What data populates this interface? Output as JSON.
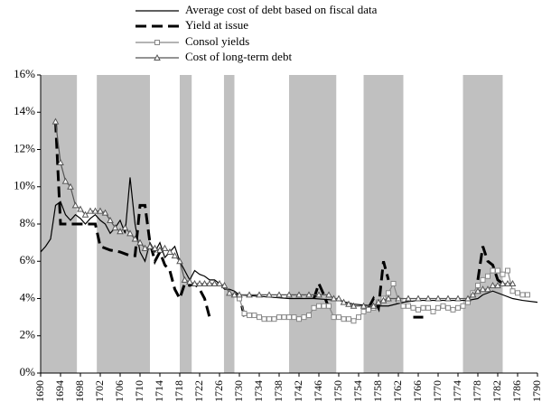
{
  "chart_data": {
    "type": "line",
    "xlim": [
      1690,
      1790
    ],
    "xticks": [
      1690,
      1694,
      1698,
      1702,
      1706,
      1710,
      1714,
      1718,
      1722,
      1726,
      1730,
      1734,
      1738,
      1742,
      1746,
      1750,
      1754,
      1758,
      1762,
      1766,
      1770,
      1774,
      1778,
      1782,
      1786,
      1790
    ],
    "ylim": [
      0,
      16
    ],
    "yticks": [
      {
        "value": 0,
        "label": "0%"
      },
      {
        "value": 2,
        "label": "2%"
      },
      {
        "value": 4,
        "label": "4%"
      },
      {
        "value": 6,
        "label": "6%"
      },
      {
        "value": 8,
        "label": "8%"
      },
      {
        "value": 10,
        "label": "10%"
      },
      {
        "value": 12,
        "label": "12%"
      },
      {
        "value": 14,
        "label": "14%"
      },
      {
        "value": 16,
        "label": "16%"
      }
    ],
    "shaded_periods": [
      [
        1690,
        1697.3
      ],
      [
        1701.3,
        1712
      ],
      [
        1718,
        1720.4
      ],
      [
        1726.9,
        1729
      ],
      [
        1740,
        1749.5
      ],
      [
        1755,
        1763
      ],
      [
        1775,
        1783
      ]
    ],
    "shade_color": "#c0c0c0",
    "series": [
      {
        "name": "Average cost of debt based on fiscal data",
        "color": "#000000",
        "style": "thin",
        "marker": "none",
        "x": [
          1690,
          1691,
          1692,
          1693,
          1694,
          1695,
          1696,
          1697,
          1698,
          1699,
          1700,
          1701,
          1702,
          1703,
          1704,
          1705,
          1706,
          1707,
          1708,
          1709,
          1710,
          1711,
          1712,
          1713,
          1714,
          1715,
          1716,
          1717,
          1718,
          1719,
          1720,
          1721,
          1722,
          1723,
          1724,
          1725,
          1726,
          1727,
          1728,
          1729,
          1730,
          1735,
          1740,
          1745,
          1750,
          1753,
          1757,
          1760,
          1763,
          1766,
          1770,
          1774,
          1776,
          1778,
          1779,
          1781,
          1783,
          1785,
          1787,
          1790
        ],
        "values": [
          6.5,
          6.8,
          7.2,
          9,
          9.2,
          8.5,
          8.2,
          8.5,
          8.3,
          8,
          8.3,
          8.5,
          8.2,
          8,
          7.5,
          7.8,
          8.2,
          7.5,
          10.5,
          8,
          6.5,
          6,
          7,
          6.5,
          7,
          6.2,
          6.5,
          6.8,
          6,
          5.5,
          5,
          5.5,
          5.3,
          5.2,
          5,
          5,
          4.8,
          4.5,
          4.5,
          4.4,
          4.2,
          4.1,
          4,
          4,
          3.9,
          3.7,
          3.6,
          3.6,
          3.8,
          3.9,
          3.9,
          3.9,
          3.9,
          4,
          4.2,
          4.4,
          4.2,
          4,
          3.9,
          3.8
        ]
      },
      {
        "name": "Yield at issue",
        "color": "#000000",
        "style": "dashed",
        "marker": "none",
        "x": [
          1693,
          1694,
          1700,
          1701,
          1702,
          1704,
          1706,
          1708,
          1709,
          1710,
          1711,
          1712,
          1713,
          1714,
          1715,
          1716,
          1717,
          1718,
          1719,
          1720,
          1721,
          1722,
          1723,
          1724,
          1725,
          1729,
          1730,
          1731,
          1732,
          1745,
          1746,
          1747,
          1748,
          1749,
          1756,
          1757,
          1758,
          1759,
          1760,
          1761,
          1765,
          1767,
          1768,
          1778,
          1779,
          1780,
          1781,
          1782,
          1783
        ],
        "values": [
          13.5,
          8,
          8,
          8,
          6.8,
          6.6,
          6.5,
          6.3,
          6.3,
          9,
          9,
          7,
          6,
          6.5,
          5.8,
          5.5,
          4.5,
          4,
          4.8,
          4.7,
          4.8,
          4.5,
          4,
          3,
          null,
          4.2,
          4.2,
          3,
          null,
          4,
          4.8,
          4.2,
          3.5,
          null,
          3.5,
          4,
          3.5,
          6,
          5,
          null,
          3,
          3,
          null,
          5,
          6.8,
          6,
          5.8,
          5,
          4.8
        ]
      },
      {
        "name": "Consol yields",
        "color": "#888888",
        "style": "thin",
        "marker": "square",
        "x": [
          1730,
          1731,
          1732,
          1733,
          1734,
          1735,
          1736,
          1737,
          1738,
          1739,
          1740,
          1741,
          1742,
          1743,
          1744,
          1745,
          1746,
          1747,
          1748,
          1749,
          1750,
          1751,
          1752,
          1753,
          1754,
          1755,
          1756,
          1757,
          1758,
          1759,
          1760,
          1761,
          1762,
          1763,
          1764,
          1765,
          1766,
          1767,
          1768,
          1769,
          1770,
          1771,
          1772,
          1773,
          1774,
          1775,
          1776,
          1777,
          1778,
          1779,
          1780,
          1781,
          1782,
          1783,
          1784,
          1785,
          1786,
          1787,
          1788
        ],
        "values": [
          4,
          3.2,
          3.1,
          3.1,
          3,
          2.9,
          2.9,
          2.9,
          3,
          3,
          3,
          3,
          2.9,
          3,
          3.1,
          3.5,
          3.6,
          3.6,
          3.6,
          3,
          3,
          2.9,
          2.9,
          2.8,
          3,
          3.3,
          3.4,
          3.5,
          3.8,
          4,
          4.3,
          4.8,
          3.9,
          3.6,
          3.6,
          3.5,
          3.4,
          3.5,
          3.5,
          3.3,
          3.5,
          3.6,
          3.5,
          3.4,
          3.5,
          3.6,
          3.8,
          4.3,
          4.7,
          5,
          5.2,
          5.5,
          5.5,
          5.3,
          5.5,
          4.4,
          4.3,
          4.2,
          4.2
        ]
      },
      {
        "name": "Cost of long-term debt",
        "color": "#555555",
        "style": "thin",
        "marker": "triangle",
        "x": [
          1693,
          1694,
          1695,
          1696,
          1697,
          1698,
          1699,
          1700,
          1701,
          1702,
          1703,
          1704,
          1705,
          1706,
          1707,
          1708,
          1709,
          1710,
          1711,
          1712,
          1713,
          1714,
          1715,
          1716,
          1717,
          1718,
          1719,
          1720,
          1721,
          1722,
          1723,
          1724,
          1725,
          1726,
          1727,
          1728,
          1729,
          1730,
          1732,
          1734,
          1736,
          1738,
          1740,
          1742,
          1744,
          1746,
          1748,
          1749,
          1750,
          1751,
          1752,
          1753,
          1755,
          1757,
          1758,
          1759,
          1760,
          1762,
          1764,
          1766,
          1768,
          1770,
          1772,
          1774,
          1776,
          1777,
          1778,
          1779,
          1780,
          1781,
          1782,
          1783,
          1784,
          1785
        ],
        "values": [
          13.5,
          11.3,
          10.3,
          10,
          9,
          8.8,
          8.5,
          8.7,
          8.7,
          8.7,
          8.6,
          8.2,
          7.8,
          7.6,
          7.8,
          7.5,
          7.2,
          7,
          6.7,
          6.8,
          6.7,
          6.6,
          6.7,
          6.5,
          6.3,
          6,
          5,
          4.9,
          4.8,
          4.8,
          4.8,
          4.8,
          4.8,
          4.8,
          4.7,
          4.3,
          4.2,
          4.2,
          4.2,
          4.2,
          4.2,
          4.2,
          4.2,
          4.2,
          4.2,
          4.2,
          4.2,
          4,
          4,
          3.8,
          3.7,
          3.6,
          3.6,
          3.6,
          3.8,
          3.9,
          4,
          4,
          4,
          4,
          4,
          4,
          4,
          4,
          4,
          4.2,
          4.4,
          4.5,
          4.5,
          4.7,
          4.7,
          4.8,
          4.8,
          4.8
        ]
      }
    ]
  }
}
